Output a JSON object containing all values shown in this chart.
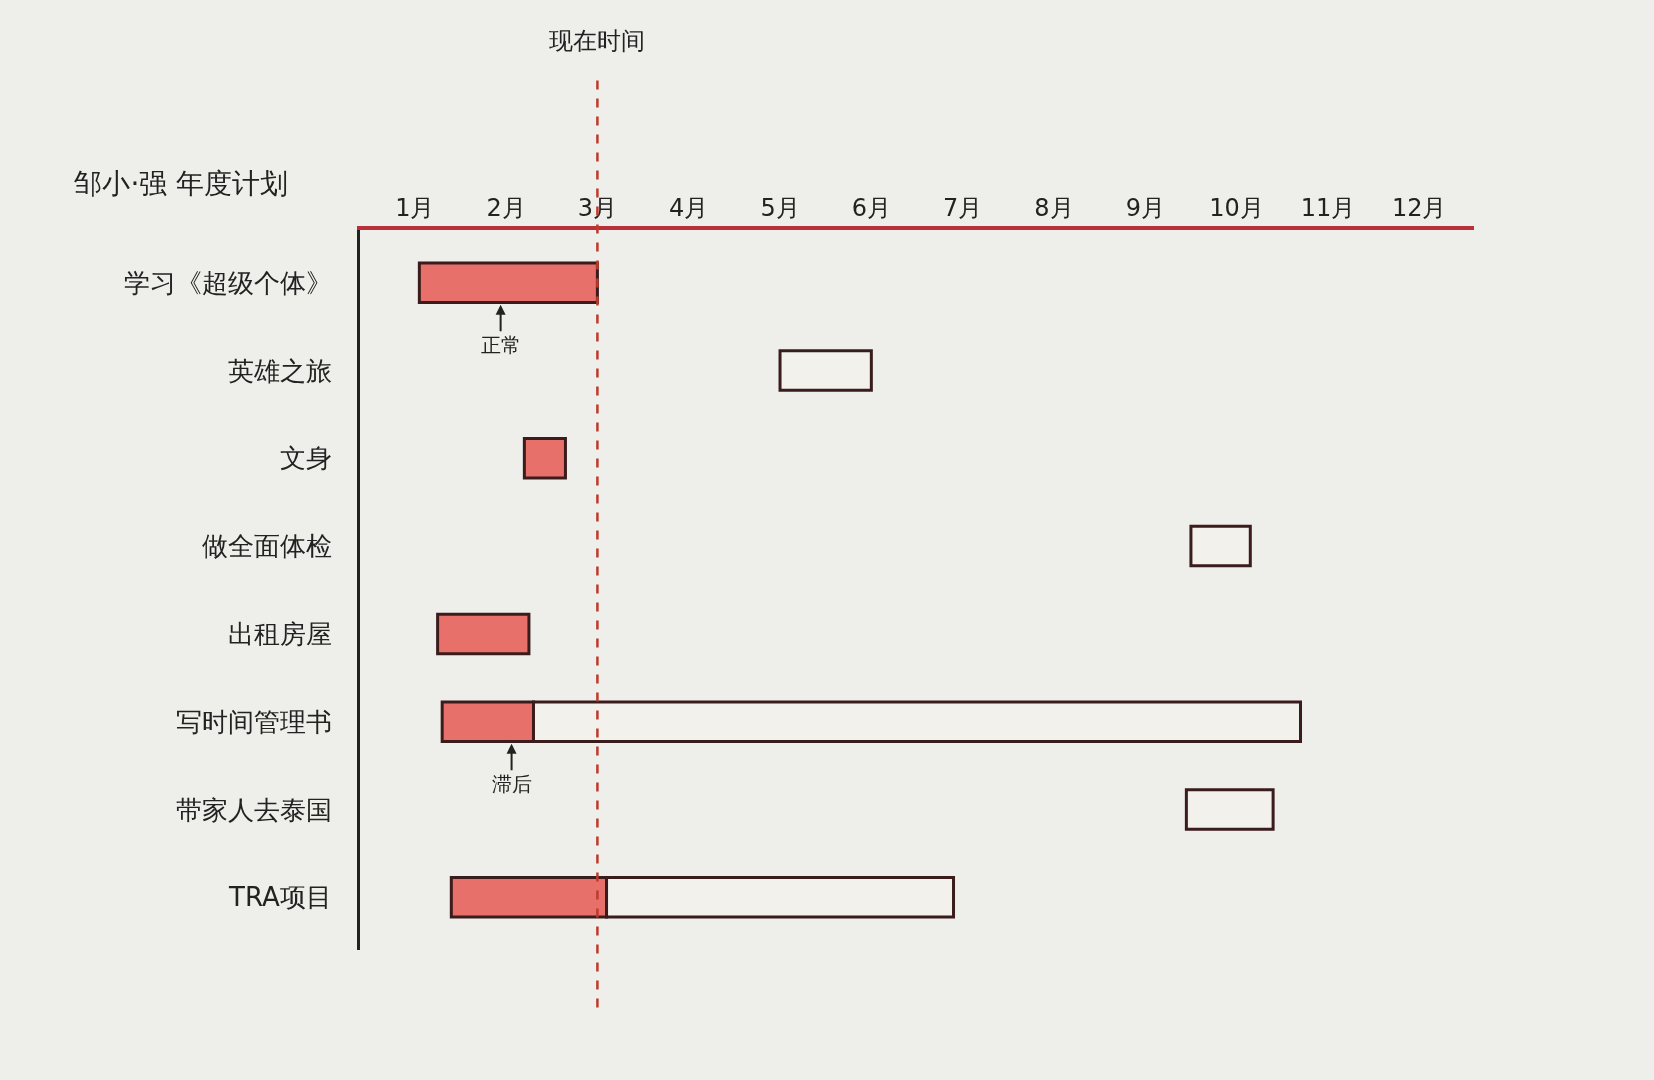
{
  "chart_data": {
    "type": "bar",
    "orientation": "horizontal",
    "title": "邹小·强 年度计划",
    "categories": [
      "学习《超级个体》",
      "英雄之旅",
      "文身",
      "做全面体检",
      "出租房屋",
      "写时间管理书",
      "带家人去泰国",
      "TRA项目"
    ],
    "series": [
      {
        "color": "#e8706a",
        "base": [
          1.05,
          null,
          2.2,
          null,
          1.25,
          1.3,
          null,
          1.4
        ],
        "values": [
          1.95,
          null,
          0.45,
          null,
          1,
          1,
          null,
          1.7
        ]
      },
      {
        "color": "#f2f1ec",
        "base": [
          null,
          5,
          null,
          9.5,
          null,
          2.3,
          9.45,
          3.1
        ],
        "values": [
          null,
          1,
          null,
          0.65,
          null,
          8.4,
          0.95,
          3.8
        ]
      }
    ],
    "xlim": [
      0.4,
      12.6
    ],
    "xticks": [
      {
        "value": 1,
        "label": "1月"
      },
      {
        "value": 2,
        "label": "2月"
      },
      {
        "value": 3,
        "label": "3月"
      },
      {
        "value": 4,
        "label": "4月"
      },
      {
        "value": 5,
        "label": "5月"
      },
      {
        "value": 6,
        "label": "6月"
      },
      {
        "value": 7,
        "label": "7月"
      },
      {
        "value": 8,
        "label": "8月"
      },
      {
        "value": 9,
        "label": "9月"
      },
      {
        "value": 10,
        "label": "10月"
      },
      {
        "value": 11,
        "label": "11月"
      },
      {
        "value": 12,
        "label": "12月"
      }
    ],
    "ref_lines": [
      {
        "axis": "x",
        "value": 3,
        "label": "现在时间",
        "color": "#c0392b",
        "line_style": "dashed"
      }
    ],
    "annotations": [
      "正常",
      "滞后"
    ],
    "grid": false
  }
}
